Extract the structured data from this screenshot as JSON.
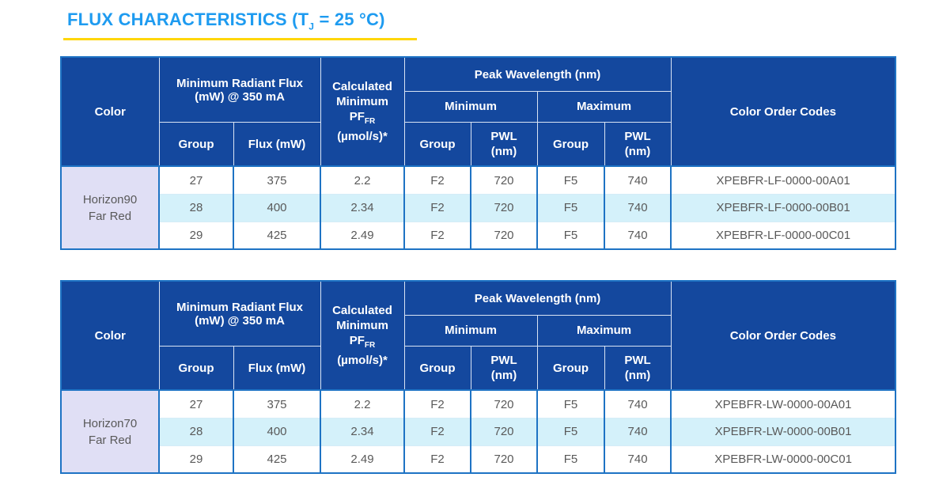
{
  "page": {
    "title": {
      "pre": "FLUX CHARACTERISTICS (T",
      "sub": "J",
      "post": " = 25 °C)"
    }
  },
  "colors": {
    "title_blue": "#1E9BF0",
    "underline_yellow": "#FFD60A",
    "header_navy": "#14489E",
    "border_blue": "#1E73C4",
    "color_cell_lavender": "#E0DFF5",
    "highlight_row_cyan": "#D4F1FA",
    "body_text_gray": "#595959"
  },
  "header": {
    "color": "Color",
    "radiant_flux": "Minimum Radiant Flux (mW) @ 350 mA",
    "group": "Group",
    "flux": "Flux (mW)",
    "calc_line1": "Calculated",
    "calc_line2": "Minimum",
    "calc_pf": "PF",
    "calc_pf_sub": "FR",
    "calc_units": "(µmol/s)*",
    "peak_wavelength": "Peak Wavelength (nm)",
    "minimum": "Minimum",
    "maximum": "Maximum",
    "pwl": "PWL",
    "pwl_unit": "(nm)",
    "order_codes": "Color Order Codes"
  },
  "tables": [
    {
      "color_line1": "Horizon90",
      "color_line2": "Far Red",
      "rows": [
        [
          "27",
          "375",
          "2.2",
          "F2",
          "720",
          "F5",
          "740",
          "XPEBFR-LF-0000-00A01"
        ],
        [
          "28",
          "400",
          "2.34",
          "F2",
          "720",
          "F5",
          "740",
          "XPEBFR-LF-0000-00B01"
        ],
        [
          "29",
          "425",
          "2.49",
          "F2",
          "720",
          "F5",
          "740",
          "XPEBFR-LF-0000-00C01"
        ]
      ]
    },
    {
      "color_line1": "Horizon70",
      "color_line2": "Far Red",
      "rows": [
        [
          "27",
          "375",
          "2.2",
          "F2",
          "720",
          "F5",
          "740",
          "XPEBFR-LW-0000-00A01"
        ],
        [
          "28",
          "400",
          "2.34",
          "F2",
          "720",
          "F5",
          "740",
          "XPEBFR-LW-0000-00B01"
        ],
        [
          "29",
          "425",
          "2.49",
          "F2",
          "720",
          "F5",
          "740",
          "XPEBFR-LW-0000-00C01"
        ]
      ]
    }
  ]
}
